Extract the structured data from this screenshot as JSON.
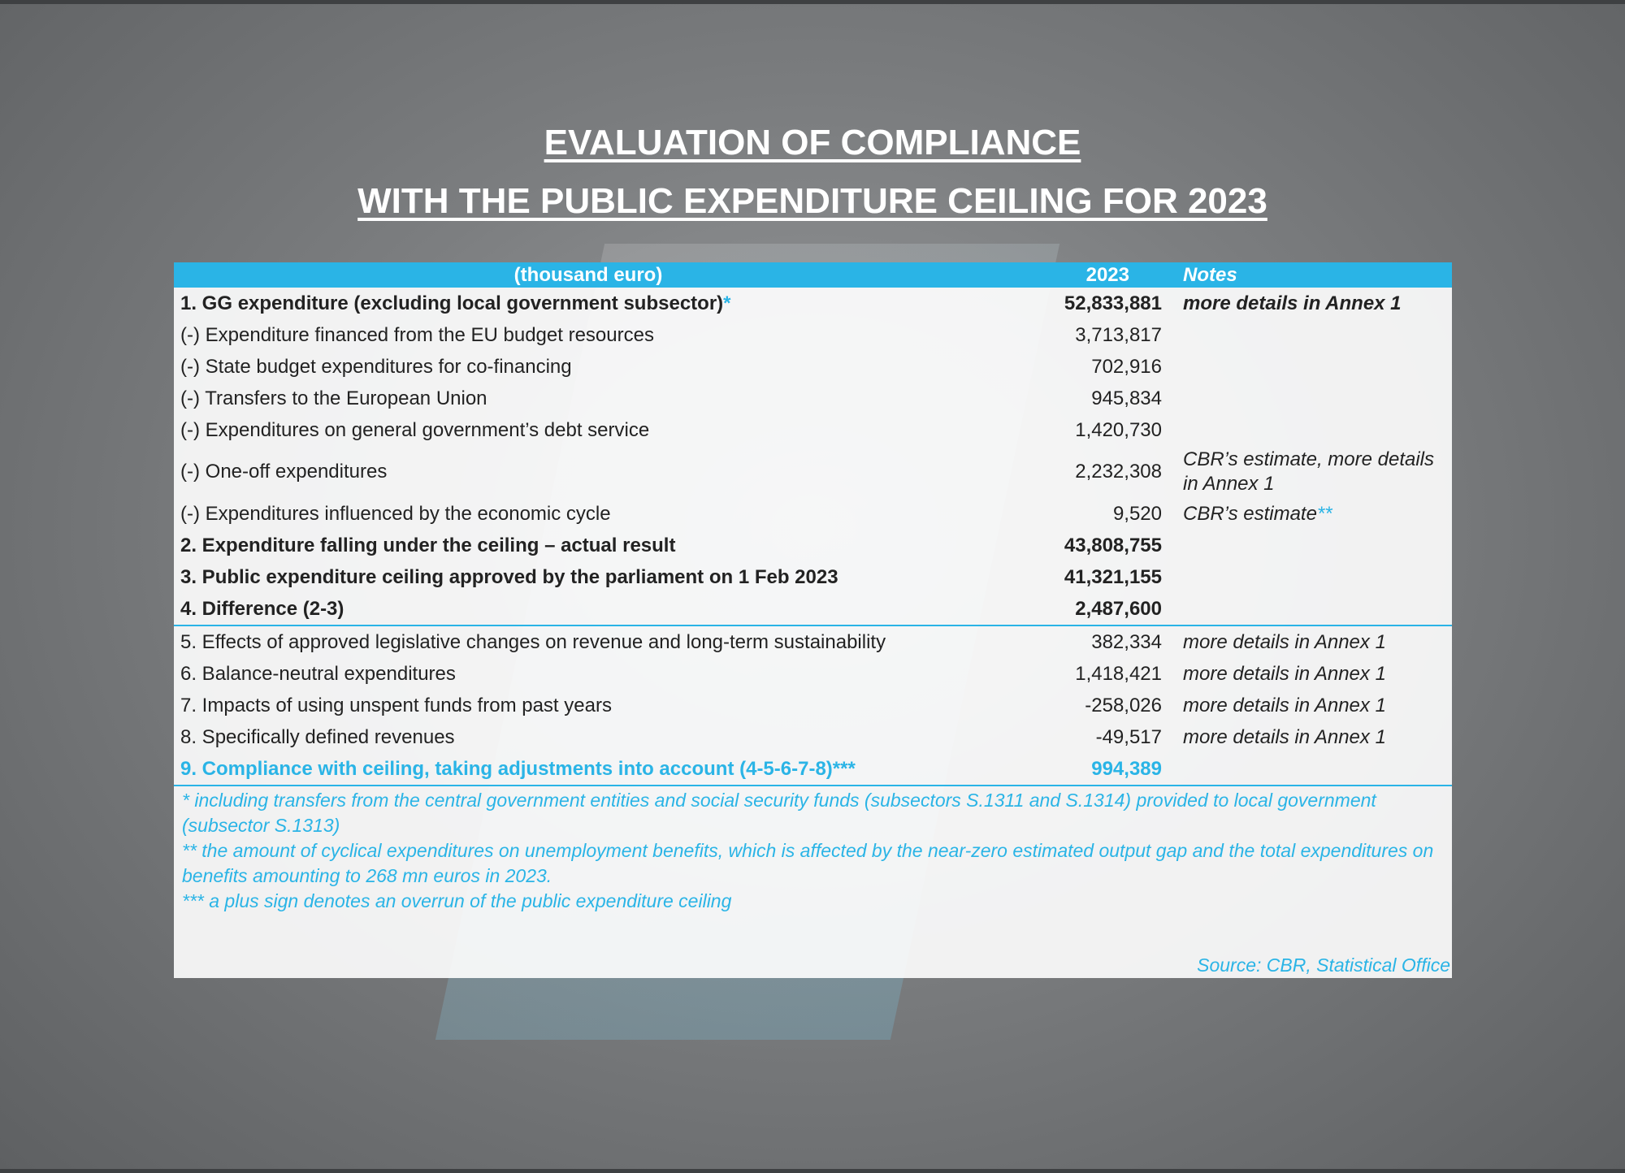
{
  "title": [
    "EVALUATION OF COMPLIANCE",
    "WITH THE PUBLIC EXPENDITURE CEILING FOR 2023"
  ],
  "table": {
    "header": [
      "(thousand euro)",
      "2023",
      "Notes"
    ],
    "rows": [
      {
        "label": "1. GG expenditure (excluding local government subsector)",
        "mark": "*",
        "value": "52,833,881",
        "note": "more details in Annex 1",
        "style": "bold"
      },
      {
        "label": "(-) Expenditure financed from the EU budget resources",
        "value": "3,713,817",
        "style": "normal"
      },
      {
        "label": "(-) State budget expenditures for co-financing",
        "value": "702,916",
        "style": "normal"
      },
      {
        "label": "(-) Transfers to the European Union",
        "value": "945,834",
        "style": "normal"
      },
      {
        "label": "(-) Expenditures on general government’s debt service",
        "value": "1,420,730",
        "style": "normal"
      },
      {
        "label": "(-) One-off expenditures",
        "value": "2,232,308",
        "note": "CBR’s estimate, more details in Annex 1",
        "style": "normal"
      },
      {
        "label": "(-) Expenditures influenced by the economic cycle",
        "value": "9,520",
        "note": "CBR’s estimate",
        "note_mark": "**",
        "style": "normal"
      },
      {
        "label": "2. Expenditure falling under the ceiling – actual result",
        "value": "43,808,755",
        "style": "bold"
      },
      {
        "label": "3. Public expenditure ceiling approved by the parliament on 1 Feb 2023",
        "value": "41,321,155",
        "style": "bold"
      },
      {
        "label": "4. Difference (2-3)",
        "value": "2,487,600",
        "style": "bold",
        "rule": true
      },
      {
        "label": "5. Effects of approved legislative changes on revenue and long-term sustainability",
        "value": "382,334",
        "note": "more details in Annex 1",
        "style": "normal"
      },
      {
        "label": "6. Balance-neutral expenditures",
        "value": "1,418,421",
        "note": "more details in Annex 1",
        "style": "normal"
      },
      {
        "label": "7. Impacts of using unspent funds from past years",
        "value": "-258,026",
        "note": "more details in Annex 1",
        "style": "normal"
      },
      {
        "label": "8. Specifically defined revenues",
        "value": "-49,517",
        "note": "more details in Annex 1",
        "style": "normal"
      },
      {
        "label": "9. Compliance with ceiling, taking adjustments into account (4-5-6-7-8)***",
        "value": "994,389",
        "style": "highlight",
        "rule": true
      }
    ]
  },
  "footnotes": [
    "* including transfers from the central government entities and social security funds (subsectors S.1311 and S.1314) provided to local government (subsector S.1313)",
    "** the amount of cyclical expenditures on unemployment benefits, which is affected by the near-zero estimated output gap and the total expenditures on benefits amounting to 268 mn euros in 2023.",
    "*** a plus sign denotes an overrun of the public expenditure ceiling"
  ],
  "source": "Source: CBR, Statistical Office"
}
